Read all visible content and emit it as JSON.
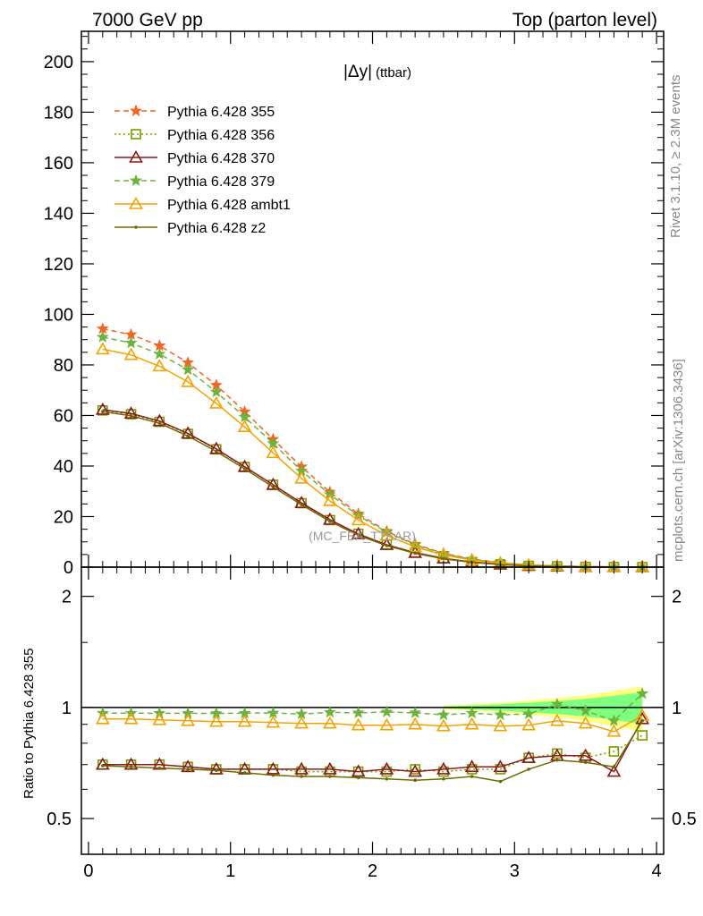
{
  "header": {
    "left": "7000 GeV pp",
    "right": "Top (parton level)"
  },
  "side_labels": {
    "rivet": "Rivet 3.1.10, ≥ 2.3M events",
    "mcplots": "mcplots.cern.ch [arXiv:1306.3436]"
  },
  "chart_data": [
    {
      "type": "line",
      "panel": "main",
      "title": "|Δy| (ttbar)",
      "title_main": "|Δy|",
      "title_sub": "(ttbar)",
      "watermark": "(MC_FBA_TTBAR)",
      "xlabel": "",
      "ylabel": "",
      "xlim": [
        -0.05,
        4.05
      ],
      "ylim": [
        0,
        212
      ],
      "x_ticks": [
        0,
        1,
        2,
        3,
        4
      ],
      "y_ticks": [
        0,
        20,
        40,
        60,
        80,
        100,
        120,
        140,
        160,
        180,
        200
      ],
      "legend_position": "top-left",
      "x": [
        0.1,
        0.3,
        0.5,
        0.7,
        0.9,
        1.1,
        1.3,
        1.5,
        1.7,
        1.9,
        2.1,
        2.3,
        2.5,
        2.7,
        2.9,
        3.1,
        3.3,
        3.5,
        3.7,
        3.9
      ],
      "series": [
        {
          "name": "Pythia 6.428 355",
          "color": "#f26522",
          "dash": "6,4",
          "marker": "star",
          "values": [
            94.3,
            92.0,
            87.6,
            80.9,
            72.0,
            61.5,
            50.6,
            39.7,
            29.7,
            21.1,
            14.2,
            9.1,
            5.5,
            3.2,
            1.8,
            0.9,
            0.5,
            0.2,
            0.1,
            0.04
          ]
        },
        {
          "name": "Pythia 6.428 356",
          "color": "#7a9a01",
          "dash": "2,3",
          "marker": "square",
          "values": [
            62.0,
            60.5,
            57.5,
            52.7,
            46.6,
            39.6,
            32.6,
            25.3,
            18.6,
            13.2,
            8.9,
            5.8,
            3.5,
            2.0,
            1.1,
            0.5,
            0.3,
            0.1,
            0.05,
            0.02
          ]
        },
        {
          "name": "Pythia 6.428 370",
          "color": "#8b1a1a",
          "dash": "",
          "marker": "triangle",
          "values": [
            62.3,
            60.8,
            57.8,
            52.9,
            46.8,
            39.7,
            32.6,
            25.4,
            18.8,
            13.1,
            8.8,
            5.7,
            3.5,
            2.0,
            1.1,
            0.55,
            0.3,
            0.12,
            0.05,
            0.02
          ]
        },
        {
          "name": "Pythia 6.428 379",
          "color": "#6db33f",
          "dash": "6,4",
          "marker": "star",
          "values": [
            91.0,
            88.7,
            84.3,
            78.1,
            69.3,
            59.4,
            48.9,
            38.1,
            28.8,
            20.4,
            13.8,
            8.8,
            5.2,
            3.1,
            1.7,
            0.9,
            0.5,
            0.2,
            0.1,
            0.04
          ]
        },
        {
          "name": "Pythia 6.428 ambt1",
          "color": "#f5a200",
          "dash": "",
          "marker": "triangle",
          "values": [
            86.2,
            84.0,
            79.5,
            73.3,
            64.8,
            55.5,
            45.2,
            35.1,
            26.2,
            18.6,
            12.6,
            8.0,
            4.8,
            2.8,
            1.6,
            0.8,
            0.45,
            0.2,
            0.09,
            0.03
          ]
        },
        {
          "name": "Pythia 6.428 z2",
          "color": "#6b6b00",
          "dash": "",
          "marker": "dot",
          "values": [
            61.5,
            59.9,
            56.9,
            51.9,
            45.8,
            38.9,
            31.7,
            24.7,
            18.1,
            12.6,
            8.5,
            5.5,
            3.3,
            1.9,
            1.0,
            0.5,
            0.3,
            0.11,
            0.05,
            0.02
          ]
        }
      ]
    },
    {
      "type": "line",
      "panel": "ratio",
      "title": "",
      "xlabel": "",
      "ylabel": "Ratio to Pythia 6.428 355",
      "xlim": [
        -0.05,
        4.05
      ],
      "ylim": [
        0.4,
        2.4
      ],
      "x_ticks": [
        0,
        1,
        2,
        3,
        4
      ],
      "y_ticks": [
        0.5,
        1,
        2
      ],
      "reference": 1,
      "x": [
        0.1,
        0.3,
        0.5,
        0.7,
        0.9,
        1.1,
        1.3,
        1.5,
        1.7,
        1.9,
        2.1,
        2.3,
        2.5,
        2.7,
        2.9,
        3.1,
        3.3,
        3.5,
        3.7,
        3.9
      ],
      "band_x": [
        2.5,
        2.7,
        2.9,
        3.1,
        3.3,
        3.5,
        3.7,
        3.9
      ],
      "band_outer": [
        0.012,
        0.02,
        0.03,
        0.045,
        0.06,
        0.08,
        0.11,
        0.14
      ],
      "band_inner": [
        0.006,
        0.012,
        0.02,
        0.03,
        0.04,
        0.055,
        0.075,
        0.1
      ],
      "band_outer_color": "#ffff80",
      "band_inner_color": "#7fff7f",
      "series": [
        {
          "name": "Pythia 6.428 356",
          "color": "#7a9a01",
          "dash": "2,3",
          "marker": "square",
          "values": [
            0.7,
            0.7,
            0.7,
            0.69,
            0.68,
            0.68,
            0.68,
            0.67,
            0.67,
            0.67,
            0.67,
            0.68,
            0.67,
            0.68,
            0.68,
            0.73,
            0.75,
            0.73,
            0.76,
            0.84
          ]
        },
        {
          "name": "Pythia 6.428 370",
          "color": "#8b1a1a",
          "dash": "",
          "marker": "triangle",
          "values": [
            0.7,
            0.7,
            0.7,
            0.69,
            0.68,
            0.68,
            0.68,
            0.68,
            0.68,
            0.67,
            0.68,
            0.67,
            0.68,
            0.69,
            0.69,
            0.73,
            0.74,
            0.74,
            0.67,
            0.93
          ]
        },
        {
          "name": "Pythia 6.428 379",
          "color": "#6db33f",
          "dash": "6,4",
          "marker": "star",
          "values": [
            0.965,
            0.965,
            0.964,
            0.964,
            0.963,
            0.965,
            0.966,
            0.96,
            0.97,
            0.967,
            0.972,
            0.967,
            0.955,
            0.965,
            0.955,
            0.96,
            1.02,
            0.98,
            0.92,
            1.09
          ]
        },
        {
          "name": "Pythia 6.428 ambt1",
          "color": "#f5a200",
          "dash": "",
          "marker": "triangle",
          "values": [
            0.93,
            0.93,
            0.925,
            0.92,
            0.915,
            0.915,
            0.91,
            0.905,
            0.905,
            0.895,
            0.895,
            0.9,
            0.89,
            0.9,
            0.89,
            0.895,
            0.92,
            0.905,
            0.86,
            0.95
          ]
        },
        {
          "name": "Pythia 6.428 z2",
          "color": "#6b6b00",
          "dash": "",
          "marker": "dot",
          "values": [
            0.695,
            0.69,
            0.685,
            0.68,
            0.675,
            0.665,
            0.655,
            0.65,
            0.65,
            0.645,
            0.64,
            0.635,
            0.64,
            0.65,
            0.63,
            0.68,
            0.72,
            0.71,
            0.69,
            0.92
          ]
        }
      ]
    }
  ]
}
